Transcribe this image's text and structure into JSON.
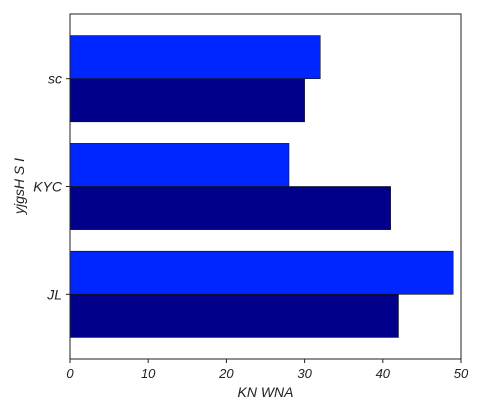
{
  "chart_data": {
    "type": "bar",
    "orientation": "horizontal",
    "categories": [
      "JL",
      "KYC",
      "sc"
    ],
    "series": [
      {
        "values": [
          42,
          41,
          30
        ],
        "color": "#00008b"
      },
      {
        "values": [
          49,
          28,
          32
        ],
        "color": "#0026ff"
      }
    ],
    "xlabel": "KN WNA",
    "ylabel": "yjgsH S I",
    "xlim": [
      0,
      50
    ],
    "xticks": [
      0,
      10,
      20,
      30,
      40,
      50
    ],
    "grid": false,
    "legend": "none"
  }
}
